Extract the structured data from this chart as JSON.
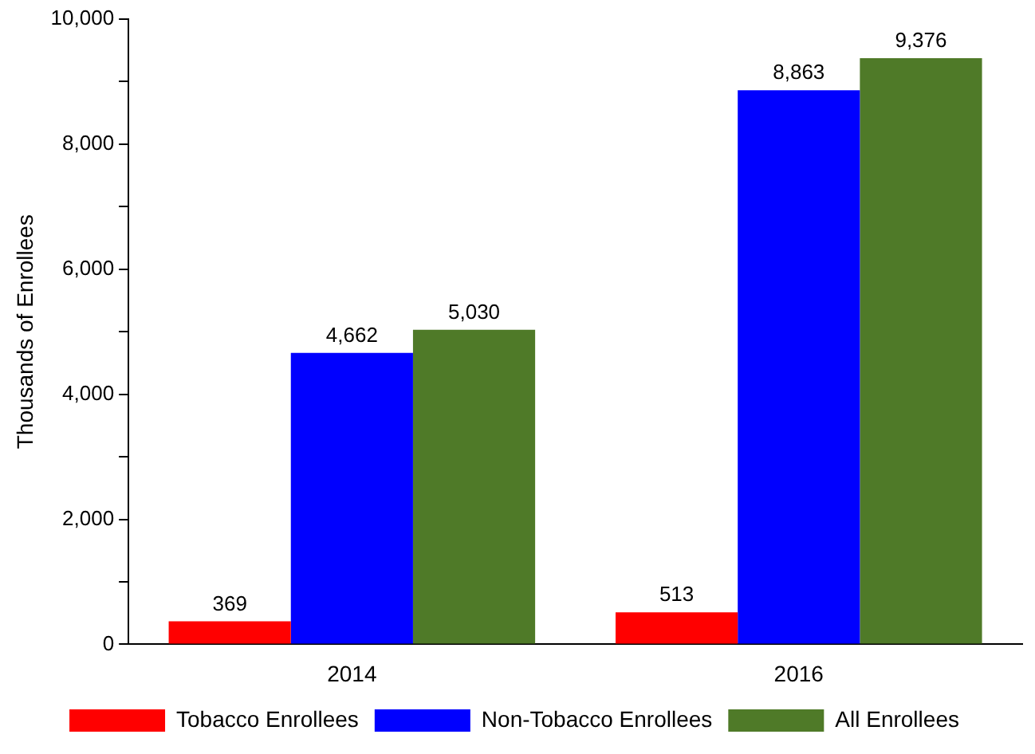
{
  "chart_data": {
    "type": "bar",
    "ylabel": "Thousands of Enrollees",
    "categories": [
      "2014",
      "2016"
    ],
    "series": [
      {
        "name": "Tobacco Enrollees",
        "color": "#ff0000",
        "values": [
          369,
          513
        ],
        "value_labels": [
          "369",
          "513"
        ]
      },
      {
        "name": "Non-Tobacco Enrollees",
        "color": "#0000ff",
        "values": [
          4662,
          8863
        ],
        "value_labels": [
          "4,662",
          "8,863"
        ]
      },
      {
        "name": "All Enrollees",
        "color": "#4f7a28",
        "values": [
          5030,
          9376
        ],
        "value_labels": [
          "5,030",
          "9,376"
        ]
      }
    ],
    "ylim": [
      0,
      10000
    ],
    "yticks": [
      0,
      {
        "value": 1000,
        "label": null
      },
      {
        "value": 2000,
        "label": "2,000"
      },
      {
        "value": 3000,
        "label": null
      },
      {
        "value": 4000,
        "label": "4,000"
      },
      {
        "value": 5000,
        "label": null
      },
      {
        "value": 6000,
        "label": "6,000"
      },
      {
        "value": 7000,
        "label": null
      },
      {
        "value": 8000,
        "label": "8,000"
      },
      {
        "value": 9000,
        "label": null
      },
      {
        "value": 10000,
        "label": "10,000"
      }
    ],
    "grid": false,
    "legend": "bottom"
  }
}
